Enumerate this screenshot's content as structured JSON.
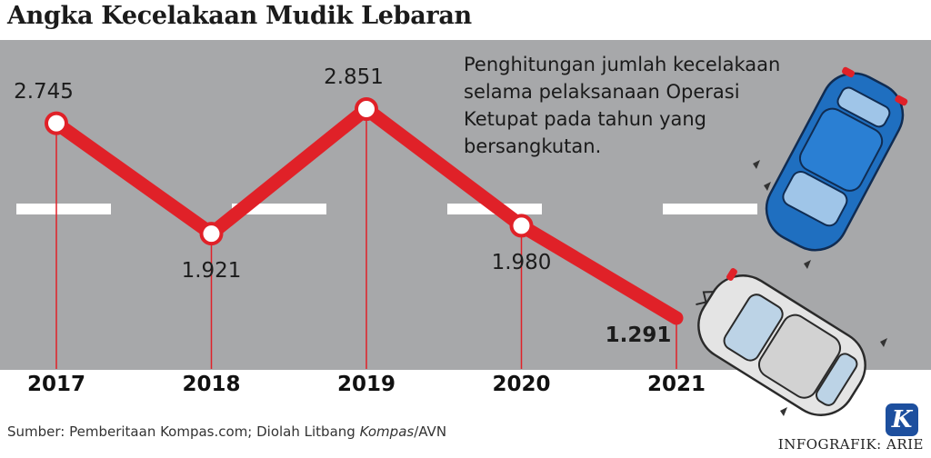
{
  "header": {
    "title": "Angka Kecelakaan Mudik Lebaran"
  },
  "note": "Penghitungan jumlah kecelakaan selama pelaksanaan Operasi Ketupat pada tahun yang bersangkutan.",
  "footer": {
    "source_prefix": "Sumber: Pemberitaan Kompas.com; Diolah Litbang ",
    "source_italic": "Kompas",
    "source_suffix": "/AVN",
    "credit": "INFOGRAFIK: ARIE",
    "logo_letter": "K"
  },
  "colors": {
    "line": "#e02128",
    "road": "#a7a8aa",
    "lane": "#ffffff",
    "blue_car": "#1f6fc0",
    "white_car": "#e4e4e4"
  },
  "chart_data": {
    "type": "line",
    "title": "Angka Kecelakaan Mudik Lebaran",
    "categories": [
      "2017",
      "2018",
      "2019",
      "2020",
      "2021"
    ],
    "values": [
      2745,
      1921,
      2851,
      1980,
      1291
    ],
    "value_labels": [
      "2.745",
      "1.921",
      "2.851",
      "1.980",
      "1.291"
    ],
    "series": [
      {
        "values": [
          2745,
          1921,
          2851,
          1980,
          1291
        ]
      }
    ],
    "ylim": [
      1000,
      3000
    ],
    "grid": false
  }
}
